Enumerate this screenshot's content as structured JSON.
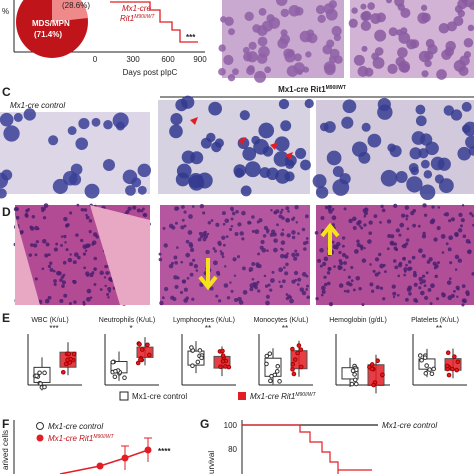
{
  "panel_a": {
    "y_label": "%",
    "pie": {
      "slice_small": "(28.6%)",
      "slice_large_name": "MDS/MPN",
      "slice_large_pct": "(71.4%)"
    },
    "curve_label": {
      "main": "Mx1-cre",
      "sub_main": "Rit1",
      "sup": "M90I/WT"
    },
    "significance": "***",
    "x_ticks": [
      "0",
      "300",
      "600",
      "900"
    ],
    "x_label": "Days post pIpC"
  },
  "panel_c": {
    "letter": "C",
    "control_label": "Mx1-cre control",
    "mutant_label": {
      "main": "Mx1-cre Rit1",
      "sup": "M90I/WT"
    }
  },
  "panel_d": {
    "letter": "D"
  },
  "panel_e": {
    "letter": "E",
    "plots": [
      {
        "title": "WBC (K/uL)",
        "sig": "***"
      },
      {
        "title": "Neutrophils (K/uL)",
        "sig": "*"
      },
      {
        "title": "Lymphocytes (K/uL)",
        "sig": "**"
      },
      {
        "title": "Monocytes (K/uL)",
        "sig": "**"
      },
      {
        "title": "Hemoglobin (g/dL)",
        "sig": ""
      },
      {
        "title": "Platelets (K/uL)",
        "sig": "**"
      }
    ],
    "legend": {
      "control": "Mx1-cre control",
      "mutant": {
        "main": "Mx1-cre Rit1",
        "sup": "M90I/WT"
      }
    }
  },
  "panel_f": {
    "letter": "F",
    "y_label": "arived cells",
    "legend": {
      "control": "Mx1-cre control",
      "mutant": {
        "main": "Mx1-cre Rit1",
        "sup": "M90I/WT"
      }
    },
    "sig": "****"
  },
  "panel_g": {
    "letter": "G",
    "y_ticks": [
      "100",
      "80"
    ],
    "y_label": "urvival",
    "legend": "Mx1-cre control"
  }
}
